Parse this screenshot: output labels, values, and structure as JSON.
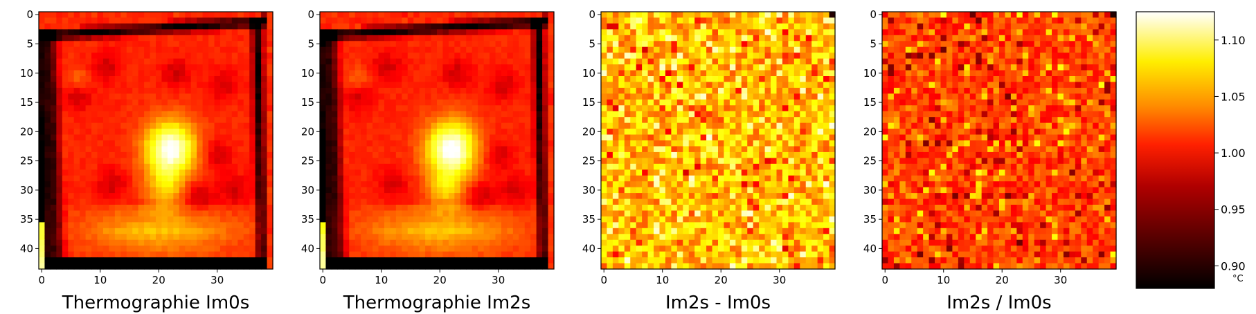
{
  "chart_data": [
    {
      "type": "heatmap",
      "title": "Thermographie Im0s",
      "rows": 44,
      "cols": 40,
      "x_ticks": [
        0,
        10,
        20,
        30
      ],
      "y_ticks": [
        0,
        5,
        10,
        15,
        20,
        25,
        30,
        35,
        40
      ],
      "colormap": "hot",
      "pattern": "smooth-hotspot",
      "hotspot_center": [
        22,
        23
      ]
    },
    {
      "type": "heatmap",
      "title": "Thermographie Im2s",
      "rows": 44,
      "cols": 40,
      "x_ticks": [
        0,
        10,
        20,
        30
      ],
      "y_ticks": [
        0,
        5,
        10,
        15,
        20,
        25,
        30,
        35,
        40
      ],
      "colormap": "hot",
      "pattern": "smooth-hotspot",
      "hotspot_center": [
        22,
        23
      ]
    },
    {
      "type": "heatmap",
      "title": "Im2s - Im0s",
      "rows": 44,
      "cols": 40,
      "x_ticks": [
        0,
        10,
        20,
        30
      ],
      "y_ticks": [
        0,
        5,
        10,
        15,
        20,
        25,
        30,
        35,
        40
      ],
      "colormap": "hot",
      "pattern": "noise-bright"
    },
    {
      "type": "heatmap",
      "title": "Im2s / Im0s",
      "rows": 44,
      "cols": 40,
      "x_ticks": [
        0,
        10,
        20,
        30
      ],
      "y_ticks": [
        0,
        5,
        10,
        15,
        20,
        25,
        30,
        35,
        40
      ],
      "colormap": "hot",
      "pattern": "noise-dark"
    }
  ],
  "colorbar": {
    "range": [
      0.88,
      1.125
    ],
    "ticks": [
      "0.90",
      "0.95",
      "1.00",
      "1.05",
      "1.10"
    ],
    "unit": "°C",
    "colors": [
      "#000000",
      "#8b0000",
      "#ff0000",
      "#ff8c00",
      "#ffff00",
      "#ffffff"
    ]
  }
}
